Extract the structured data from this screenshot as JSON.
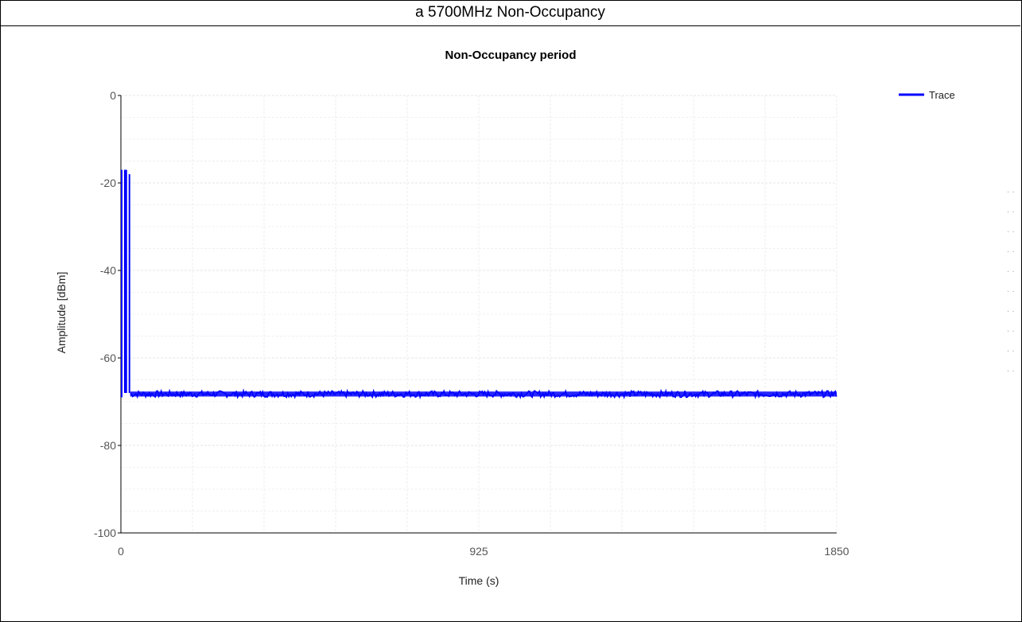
{
  "header": {
    "title": "a 5700MHz Non-Occupancy"
  },
  "chart_data": {
    "type": "line",
    "title": "Non-Occupancy period",
    "xlabel": "Time (s)",
    "ylabel": "Amplitude [dBm]",
    "xlim": [
      0,
      1850
    ],
    "ylim": [
      -100,
      0
    ],
    "x_ticks": [
      "0",
      "925",
      "1850"
    ],
    "y_ticks": [
      "0",
      "-20",
      "-40",
      "-60",
      "-80",
      "-100"
    ],
    "grid": true,
    "legend_position": "top-right",
    "series": [
      {
        "name": "Trace",
        "color": "#0000ff",
        "segments": [
          {
            "x_start": 0,
            "x_end": 6,
            "min": -69,
            "max": -17
          },
          {
            "x_start": 8,
            "x_end": 18,
            "min": -68,
            "max": -17
          },
          {
            "x_start": 20,
            "x_end": 24,
            "min": -68,
            "max": -18
          },
          {
            "x_start": 24,
            "x_end": 1850,
            "min": -69,
            "max": -67.5
          }
        ]
      }
    ]
  }
}
